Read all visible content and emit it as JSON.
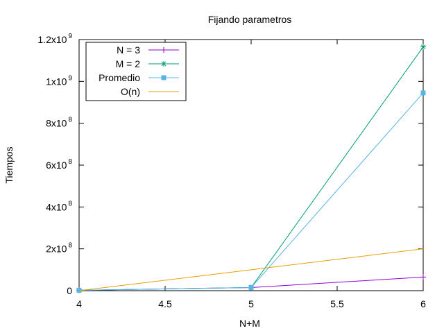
{
  "chart_data": {
    "type": "line",
    "title": "Fijando parametros",
    "xlabel": "N+M",
    "ylabel": "Tiempos",
    "xlim": [
      4,
      6
    ],
    "ylim": [
      0,
      1200000000
    ],
    "grid": false,
    "legend_position": "top-left",
    "x_ticks": [
      {
        "value": 4,
        "label": "4"
      },
      {
        "value": 4.5,
        "label": "4.5"
      },
      {
        "value": 5,
        "label": "5"
      },
      {
        "value": 5.5,
        "label": "5.5"
      },
      {
        "value": 6,
        "label": "6"
      }
    ],
    "y_ticks": [
      {
        "value": 0,
        "mantissa": "0",
        "exp": ""
      },
      {
        "value": 200000000,
        "mantissa": "2x10",
        "exp": "8"
      },
      {
        "value": 400000000,
        "mantissa": "4x10",
        "exp": "8"
      },
      {
        "value": 600000000,
        "mantissa": "6x10",
        "exp": "8"
      },
      {
        "value": 800000000,
        "mantissa": "8x10",
        "exp": "8"
      },
      {
        "value": 1000000000,
        "mantissa": "1x10",
        "exp": "9"
      },
      {
        "value": 1200000000,
        "mantissa": "1.2x10",
        "exp": "9"
      }
    ],
    "series": [
      {
        "name": "N = 3",
        "color": "#9400d3",
        "marker": "plus",
        "points": [
          [
            4,
            2000000
          ],
          [
            5,
            15000000
          ],
          [
            6,
            65000000
          ]
        ]
      },
      {
        "name": "M = 2",
        "color": "#009e73",
        "marker": "star",
        "points": [
          [
            4,
            2000000
          ],
          [
            5,
            15000000
          ],
          [
            6,
            1165000000
          ]
        ]
      },
      {
        "name": "Promedio",
        "color": "#56b4e9",
        "marker": "square",
        "points": [
          [
            4,
            2000000
          ],
          [
            5,
            15000000
          ],
          [
            6,
            945000000
          ]
        ]
      },
      {
        "name": "O(n)",
        "color": "#e69f00",
        "marker": "none",
        "points": [
          [
            4,
            0
          ],
          [
            5,
            100000000
          ],
          [
            6,
            200000000
          ]
        ]
      }
    ]
  }
}
